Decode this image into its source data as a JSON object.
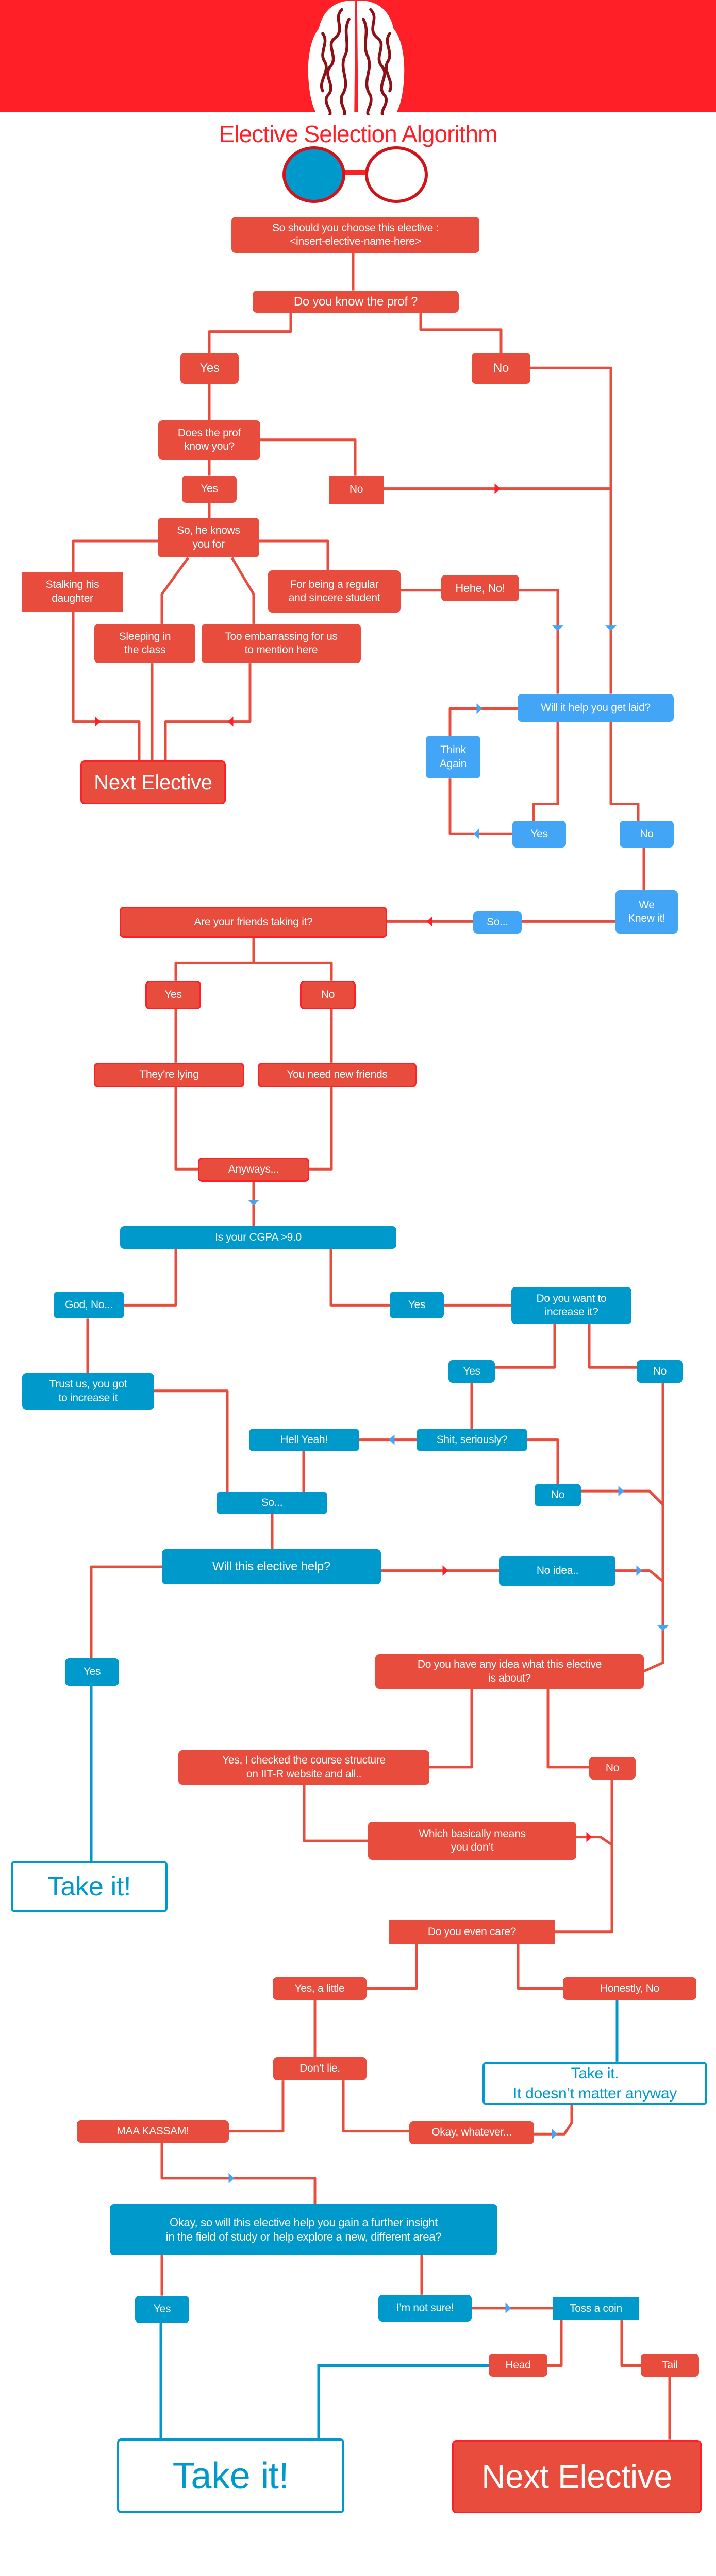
{
  "header": {
    "title": "Elective Selection Algorithm",
    "logo": "brain-icon",
    "glasses": "glasses-icon"
  },
  "colors": {
    "red": "#E74C3C",
    "bright_red": "#FF1F27",
    "light_blue": "#42A5F5",
    "blue": "#0099CC"
  },
  "nodes": {
    "q_start": "So should you choose this elective :\n<insert-elective-name-here>",
    "q_know_prof": "Do you know the prof ?",
    "a_know_yes": "Yes",
    "a_know_no": "No",
    "q_prof_knows": "Does the prof\nknow you?",
    "a_pk_yes": "Yes",
    "a_pk_no": "No",
    "q_knows_for": "So, he knows\nyou for",
    "o_stalking": "Stalking his\ndaughter",
    "o_sleeping": "Sleeping in\nthe class",
    "o_embarrassing": "Too embarrassing for us\nto mention here",
    "o_regular": "For being a regular\nand sincere student",
    "r_hehe": "Hehe, No!",
    "end_next1": "Next Elective",
    "q_laid": "Will it help you get laid?",
    "r_think": "Think\nAgain",
    "a_laid_yes": "Yes",
    "a_laid_no": "No",
    "r_knew": "We\nKnew it!",
    "r_so1": "So...",
    "q_friends": "Are your friends taking it?",
    "a_fr_yes": "Yes",
    "a_fr_no": "No",
    "r_lying": "They’re lying",
    "r_new_friends": "You need new friends",
    "r_anyways": "Anyways...",
    "q_cgpa": "Is your CGPA >9.0",
    "a_cgpa_no": "God, No...",
    "a_cgpa_yes": "Yes",
    "q_increase": "Do you want to\nincrease it?",
    "r_trust": "Trust us, you got\nto increase it",
    "a_inc_yes": "Yes",
    "a_inc_no": "No",
    "r_seriously": "Shit, seriously?",
    "r_hell_yeah": "Hell Yeah!",
    "a_ser_no": "No",
    "r_so2": "So...",
    "q_help": "Will this elective help?",
    "a_help_idea": "No idea..",
    "a_help_yes": "Yes",
    "end_take1": "Take it!",
    "q_idea": "Do you have any idea what this elective\nis about?",
    "a_idea_yes": "Yes, I checked the course structure\non IIT-R website and all..",
    "a_idea_no": "No",
    "r_means": "Which basically means\nyou don’t",
    "q_care": "Do you even care?",
    "a_care_little": "Yes, a little",
    "a_care_no": "Honestly, No",
    "end_take2": "Take it.\nIt doesn’t matter anyway",
    "r_dont_lie": "Don’t lie.",
    "r_maa": "MAA KASSAM!",
    "r_whatever": "Okay, whatever...",
    "q_insight": "Okay, so will this elective help you gain a further insight\nin the field of study or help explore a new,  different area?",
    "a_ins_yes": "Yes",
    "a_ins_unsure": "I’m not sure!",
    "r_toss": "Toss a coin",
    "a_head": "Head",
    "a_tail": "Tail",
    "end_take3": "Take it!",
    "end_next2": "Next Elective"
  }
}
